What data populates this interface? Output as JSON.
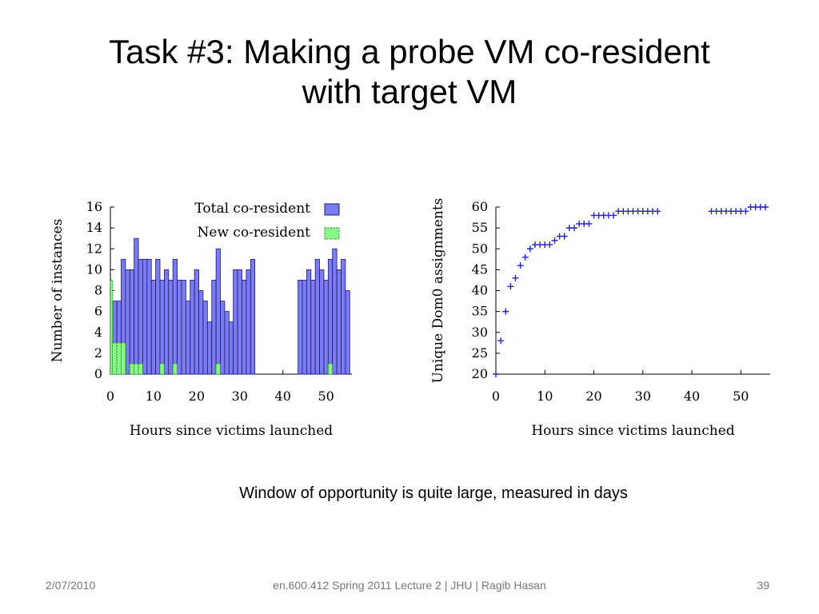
{
  "slide": {
    "title_line1": "Task #3: Making a probe VM co-resident",
    "title_line2": "with target VM",
    "caption": "Window of opportunity is quite large, measured in days",
    "footer_date": "2/07/2010",
    "footer_center": "en.600.412 Spring 2011 Lecture 2 | JHU | Ragib Hasan",
    "page_number": "39"
  },
  "colors": {
    "total": "#7b7bf2",
    "new": "#8af58a",
    "marker": "#2323c8"
  },
  "chart_data": [
    {
      "type": "bar",
      "xlabel": "Hours since victims launched",
      "ylabel": "Number of instances",
      "xlim": [
        0,
        56
      ],
      "ylim": [
        0,
        16
      ],
      "xticks": [
        0,
        10,
        20,
        30,
        40,
        50
      ],
      "yticks": [
        0,
        2,
        4,
        6,
        8,
        10,
        12,
        14,
        16
      ],
      "legend_position": "top-right",
      "series": [
        {
          "name": "Total co-resident",
          "x": [
            1,
            2,
            3,
            4,
            5,
            6,
            7,
            8,
            9,
            10,
            11,
            12,
            13,
            14,
            15,
            16,
            17,
            18,
            19,
            20,
            21,
            22,
            23,
            24,
            25,
            26,
            27,
            28,
            29,
            30,
            31,
            32,
            33,
            44,
            45,
            46,
            47,
            48,
            49,
            50,
            51,
            52,
            53,
            54,
            55
          ],
          "values": [
            7,
            7,
            11,
            10,
            10,
            13,
            11,
            11,
            11,
            9,
            11,
            9,
            10,
            9,
            11,
            9,
            9,
            7,
            9,
            10,
            8,
            7,
            5,
            9,
            12,
            7,
            6,
            5,
            10,
            10,
            9,
            10,
            11,
            9,
            9,
            10,
            9,
            11,
            10,
            9,
            11,
            12,
            10,
            11,
            8
          ]
        },
        {
          "name": "New co-resident",
          "x": [
            0,
            1,
            2,
            3,
            5,
            6,
            7,
            12,
            15,
            25,
            51
          ],
          "values": [
            9,
            3,
            3,
            3,
            1,
            1,
            1,
            1,
            1,
            1,
            1
          ]
        }
      ]
    },
    {
      "type": "scatter",
      "xlabel": "Hours since victims launched",
      "ylabel": "Unique Dom0 assignments",
      "xlim": [
        0,
        56
      ],
      "ylim": [
        20,
        60
      ],
      "xticks": [
        0,
        10,
        20,
        30,
        40,
        50
      ],
      "yticks": [
        20,
        25,
        30,
        35,
        40,
        45,
        50,
        55,
        60
      ],
      "series": [
        {
          "name": "",
          "x": [
            0,
            1,
            2,
            3,
            4,
            5,
            6,
            7,
            8,
            9,
            10,
            11,
            12,
            13,
            14,
            15,
            16,
            17,
            18,
            19,
            20,
            21,
            22,
            23,
            24,
            25,
            26,
            27,
            28,
            29,
            30,
            31,
            32,
            33,
            44,
            45,
            46,
            47,
            48,
            49,
            50,
            51,
            52,
            53,
            54,
            55
          ],
          "y": [
            20,
            28,
            35,
            41,
            43,
            46,
            48,
            50,
            51,
            51,
            51,
            51,
            52,
            53,
            53,
            55,
            55,
            56,
            56,
            56,
            58,
            58,
            58,
            58,
            58,
            59,
            59,
            59,
            59,
            59,
            59,
            59,
            59,
            59,
            59,
            59,
            59,
            59,
            59,
            59,
            59,
            59,
            60,
            60,
            60,
            60
          ]
        }
      ]
    }
  ]
}
